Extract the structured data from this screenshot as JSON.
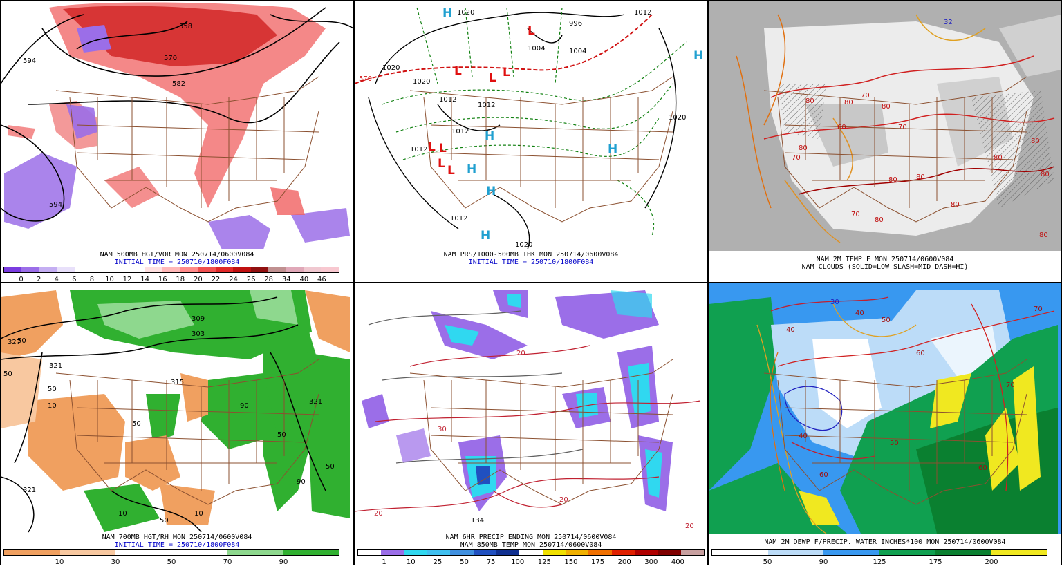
{
  "panels": [
    {
      "id": "p1",
      "caption1": "NAM 500MB HGT/VOR MON 250714/0600V084",
      "caption2": "INITIAL TIME = 250710/1800F084",
      "contour_labels": [
        "594",
        "558",
        "570",
        "582",
        "594"
      ],
      "colorbar": {
        "colors": [
          "#7a3ce0",
          "#9b6ee8",
          "#c4aef2",
          "#e8e0fa",
          "#ffffff",
          "#ffffff",
          "#ffffff",
          "#ffffff",
          "#ffe0e0",
          "#ffb8b8",
          "#ff8a8a",
          "#f05050",
          "#e02828",
          "#c01010",
          "#901010",
          "#c09090",
          "#e0a8b8",
          "#f0c8d0",
          "#f8c8d0"
        ],
        "ticks": [
          "0",
          "2",
          "4",
          "6",
          "8",
          "10",
          "12",
          "14",
          "16",
          "18",
          "20",
          "22",
          "24",
          "26",
          "28",
          "34",
          "40",
          "46"
        ]
      }
    },
    {
      "id": "p2",
      "caption1": "NAM PRS/1000-500MB THK MON 250714/0600V084",
      "caption2": "INITIAL TIME = 250710/1800F084",
      "contour_labels": [
        "1020",
        "996",
        "1004",
        "1004",
        "1012",
        "1020",
        "570",
        "1020",
        "1012",
        "1012",
        "1020",
        "1012",
        "1012",
        "1012",
        "1020"
      ],
      "highs": [
        "H",
        "H",
        "H",
        "H",
        "H",
        "H",
        "H"
      ],
      "lows": [
        "L",
        "L",
        "L",
        "L",
        "L",
        "L",
        "L",
        "L"
      ]
    },
    {
      "id": "p3",
      "caption1": "NAM 2M TEMP F MON 250714/0600V084",
      "caption2": "NAM CLOUDS (SOLID=LOW SLASH=MID DASH=HI)",
      "temp_labels": [
        "80",
        "80",
        "70",
        "80",
        "60",
        "70",
        "80",
        "70",
        "80",
        "80",
        "80",
        "70",
        "80",
        "80",
        "80",
        "80",
        "80",
        "32"
      ]
    },
    {
      "id": "p4",
      "caption1": "NAM 700MB HGT/RH MON 250714/0600V084",
      "caption2": "INITIAL TIME = 250710/1800F084",
      "contour_labels": [
        "327",
        "321",
        "309",
        "303",
        "315",
        "321",
        "321",
        "50",
        "50",
        "50",
        "50",
        "50",
        "50",
        "50",
        "10",
        "10",
        "10",
        "90",
        "90"
      ],
      "colorbar": {
        "colors": [
          "#f0a060",
          "#f0a060",
          "#f8c8a0",
          "#f8c8a0",
          "#ffffff",
          "#ffffff",
          "#ffffff",
          "#ffffff",
          "#8ed88e",
          "#8ed88e",
          "#30b030",
          "#30b030"
        ],
        "ticks": [
          "10",
          "30",
          "50",
          "70",
          "90"
        ]
      }
    },
    {
      "id": "p5",
      "caption1": "NAM 6HR PRECIP ENDING MON 250714/0600V084",
      "caption2": "NAM 850MB TEMP MON 250714/0600V084",
      "contour_labels": [
        "30",
        "20",
        "20",
        "20",
        "20",
        "134"
      ],
      "colorbar": {
        "colors": [
          "#ffffff",
          "#9b6ee8",
          "#30d8f0",
          "#40c0f0",
          "#4090e0",
          "#2050c0",
          "#103090",
          "#ffffff",
          "#f0e000",
          "#f0b000",
          "#f07000",
          "#e02000",
          "#b00000",
          "#800000",
          "#c8a0a0"
        ],
        "ticks": [
          "1",
          "10",
          "25",
          "50",
          "75",
          "100",
          "125",
          "150",
          "175",
          "200",
          "300",
          "400"
        ]
      }
    },
    {
      "id": "p6",
      "caption1": "NAM 2M DEWP F/PRECIP. WATER INCHES*100 MON 250714/0600V084",
      "contour_labels": [
        "30",
        "40",
        "40",
        "50",
        "40",
        "50",
        "60",
        "70",
        "70",
        "60",
        "60"
      ],
      "colorbar": {
        "colors": [
          "#ffffff",
          "#ffffff",
          "#bcdcf8",
          "#bcdcf8",
          "#3898f0",
          "#3898f0",
          "#10a050",
          "#10a050",
          "#0a8030",
          "#0a8030",
          "#f0e820",
          "#f0e820"
        ],
        "ticks": [
          "50",
          "90",
          "125",
          "175",
          "200"
        ]
      }
    }
  ]
}
